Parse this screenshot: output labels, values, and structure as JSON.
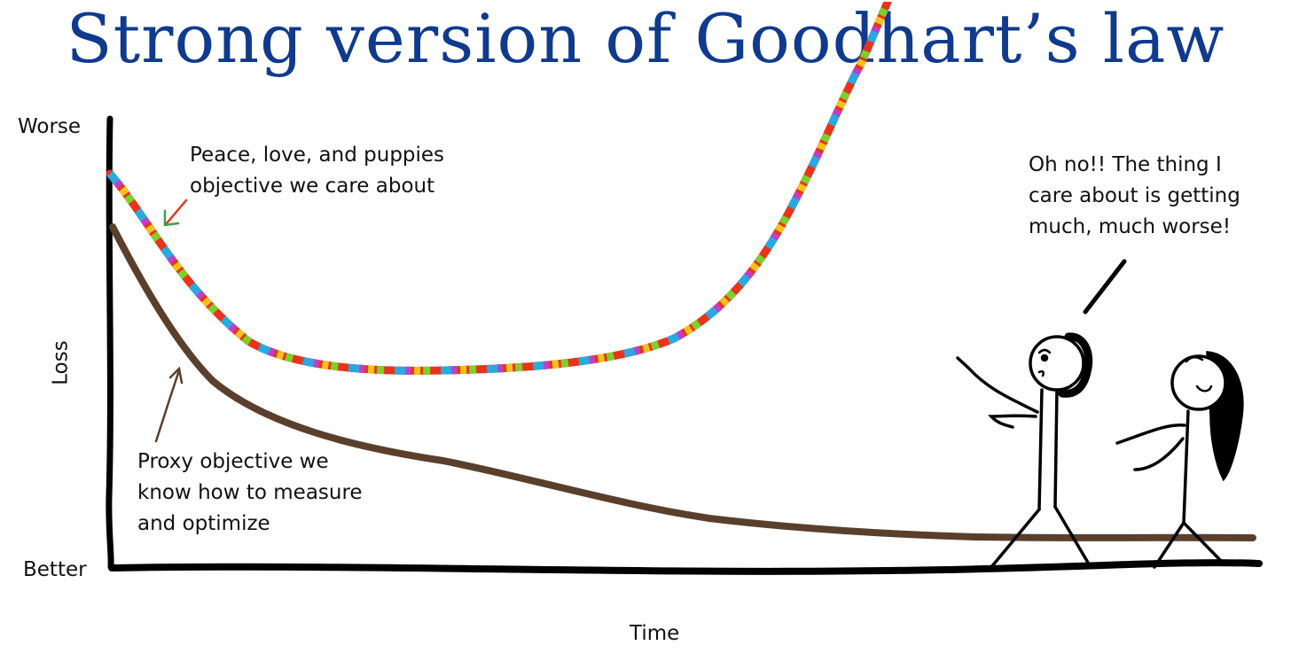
{
  "title": "Strong version of Goodhart’s law",
  "axes": {
    "y_label": "Loss",
    "y_top": "Worse",
    "y_bottom": "Better",
    "x_label": "Time"
  },
  "annotations": {
    "true_objective": [
      "Peace, love, and puppies",
      "objective we care about"
    ],
    "proxy_objective": [
      "Proxy objective we",
      "know how to measure",
      "and optimize"
    ],
    "speech": [
      "Oh no!! The thing I",
      "care about is getting",
      "much, much worse!"
    ]
  },
  "colors": {
    "title": "#0f3a8e",
    "axis": "#000000",
    "proxy_line": "#5a3f2c",
    "rainbow": [
      "#e8341c",
      "#29a9e0",
      "#7ad12a",
      "#f2c21a",
      "#c13ec9",
      "#1f8fe0",
      "#ff5a1f"
    ]
  },
  "series": [
    {
      "key": "true",
      "style": "rainbow",
      "trend": "decreases, flattens, then rises sharply"
    },
    {
      "key": "proxy",
      "style": "brown",
      "trend": "decreases steadily and flattens"
    }
  ],
  "figures": [
    "stick-figure-man",
    "stick-figure-woman"
  ]
}
